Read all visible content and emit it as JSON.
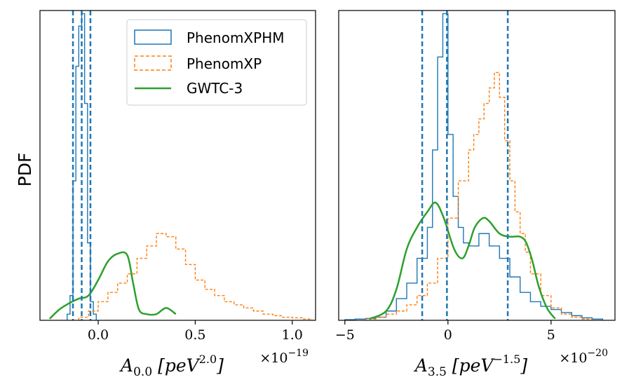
{
  "colors": {
    "phenomxphm": "#1f77b4",
    "phenomxp": "#ff7f0e",
    "gwtc3": "#2ca02c"
  },
  "ylabel": "PDF",
  "legend": {
    "placement": "upper-right of left panel",
    "items": [
      "PhenomXPHM",
      "PhenomXP",
      "GWTC-3"
    ]
  },
  "chart_data": [
    {
      "type": "histogram",
      "panel": "left",
      "xlabel": "A_{0.0} [peV^{2.0}]",
      "xlabel_main": "A",
      "xlabel_sub": "0.0",
      "xlabel_unit": "peV",
      "xlabel_exp": "2.0",
      "multiplier_base": "×10",
      "multiplier_exp": "−19",
      "xlim": [
        -0.3,
        1.12
      ],
      "ylim": [
        0,
        1.0
      ],
      "xticks": [
        0.0,
        0.5,
        1.0
      ],
      "xtick_labels": [
        "0.0",
        "0.5",
        "1.0"
      ],
      "vlines": [
        -0.13,
        -0.085,
        -0.04
      ],
      "series": [
        {
          "name": "PhenomXPHM",
          "style": "step",
          "edges": [
            -0.16,
            -0.145,
            -0.13,
            -0.115,
            -0.1,
            -0.085,
            -0.07,
            -0.055,
            -0.04,
            -0.025,
            -0.01
          ],
          "values": [
            0.02,
            0.08,
            0.45,
            0.82,
            0.95,
            0.99,
            0.7,
            0.25,
            0.06,
            0.02
          ]
        },
        {
          "name": "PhenomXP",
          "style": "step-dashed",
          "edges": [
            -0.1,
            -0.05,
            0.0,
            0.05,
            0.1,
            0.15,
            0.2,
            0.25,
            0.3,
            0.35,
            0.4,
            0.45,
            0.5,
            0.55,
            0.6,
            0.65,
            0.7,
            0.75,
            0.8,
            0.85,
            0.9,
            0.95,
            1.0,
            1.05,
            1.1
          ],
          "values": [
            0.01,
            0.03,
            0.06,
            0.09,
            0.12,
            0.15,
            0.2,
            0.24,
            0.28,
            0.27,
            0.23,
            0.18,
            0.13,
            0.1,
            0.08,
            0.06,
            0.05,
            0.04,
            0.03,
            0.02,
            0.015,
            0.01,
            0.008,
            0.004
          ]
        },
        {
          "name": "GWTC-3",
          "style": "line",
          "x": [
            -0.25,
            -0.2,
            -0.15,
            -0.1,
            -0.05,
            0.0,
            0.05,
            0.1,
            0.15,
            0.18,
            0.21,
            0.25,
            0.3,
            0.35,
            0.4
          ],
          "y": [
            0.005,
            0.035,
            0.055,
            0.07,
            0.08,
            0.13,
            0.19,
            0.215,
            0.21,
            0.12,
            0.035,
            0.02,
            0.02,
            0.04,
            0.02
          ]
        }
      ]
    },
    {
      "type": "histogram",
      "panel": "right",
      "xlabel": "A_{3.5} [peV^{-1.5}]",
      "xlabel_main": "A",
      "xlabel_sub": "3.5",
      "xlabel_unit": "peV",
      "xlabel_exp": "−1.5",
      "multiplier_base": "×10",
      "multiplier_exp": "−20",
      "xlim": [
        -5.3,
        8.1
      ],
      "ylim": [
        0,
        1.0
      ],
      "xticks": [
        -5,
        0,
        5
      ],
      "xtick_labels": [
        "−5",
        "0",
        "5"
      ],
      "vlines": [
        -1.25,
        -0.05,
        2.9
      ],
      "series": [
        {
          "name": "PhenomXPHM",
          "style": "step",
          "edges": [
            -5.0,
            -4.5,
            -4.0,
            -3.5,
            -3.0,
            -2.5,
            -2.0,
            -1.5,
            -1.0,
            -0.75,
            -0.5,
            -0.25,
            0.0,
            0.25,
            0.5,
            0.75,
            1.0,
            1.5,
            2.0,
            2.5,
            3.0,
            3.5,
            4.0,
            4.5,
            5.0,
            5.5,
            6.0,
            6.5,
            7.0,
            7.5
          ],
          "values": [
            0.002,
            0.004,
            0.006,
            0.01,
            0.03,
            0.07,
            0.12,
            0.2,
            0.3,
            0.55,
            0.85,
            0.99,
            0.6,
            0.4,
            0.3,
            0.25,
            0.24,
            0.28,
            0.24,
            0.2,
            0.14,
            0.09,
            0.06,
            0.045,
            0.035,
            0.025,
            0.015,
            0.008,
            0.004
          ]
        },
        {
          "name": "PhenomXP",
          "style": "step-dashed",
          "edges": [
            -4.0,
            -3.5,
            -3.0,
            -2.5,
            -2.0,
            -1.5,
            -1.0,
            -0.5,
            0.0,
            0.5,
            1.0,
            1.25,
            1.5,
            1.75,
            2.0,
            2.25,
            2.5,
            2.75,
            3.0,
            3.25,
            3.5,
            3.75,
            4.0,
            4.5,
            5.0,
            5.5,
            6.0,
            6.5,
            7.0
          ],
          "values": [
            0.004,
            0.01,
            0.02,
            0.03,
            0.05,
            0.08,
            0.12,
            0.2,
            0.33,
            0.45,
            0.55,
            0.6,
            0.65,
            0.7,
            0.75,
            0.8,
            0.72,
            0.58,
            0.45,
            0.35,
            0.28,
            0.22,
            0.15,
            0.08,
            0.04,
            0.02,
            0.01,
            0.004
          ]
        },
        {
          "name": "GWTC-3",
          "style": "line",
          "x": [
            -3.8,
            -3.0,
            -2.5,
            -2.0,
            -1.5,
            -1.0,
            -0.6,
            -0.2,
            0.3,
            0.7,
            1.0,
            1.3,
            1.7,
            2.0,
            2.5,
            3.0,
            3.5,
            3.8,
            4.1,
            4.4,
            4.8,
            5.2
          ],
          "y": [
            0.005,
            0.03,
            0.1,
            0.23,
            0.3,
            0.35,
            0.38,
            0.33,
            0.23,
            0.2,
            0.24,
            0.3,
            0.33,
            0.32,
            0.28,
            0.27,
            0.27,
            0.25,
            0.19,
            0.11,
            0.04,
            0.005
          ]
        }
      ]
    }
  ]
}
